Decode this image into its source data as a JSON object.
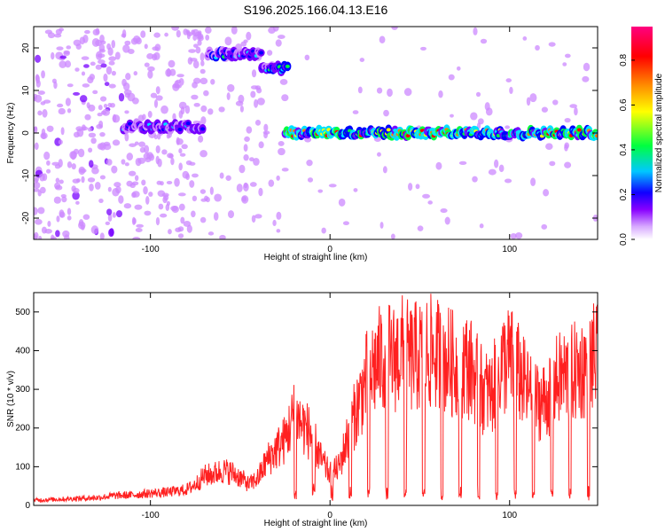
{
  "title": "S196.2025.166.04.13.E16",
  "chart_data": [
    {
      "type": "heatmap",
      "title": "S196.2025.166.04.13.E16",
      "xlabel": "Height of straight line (km)",
      "ylabel": "Frequency (Hz)",
      "xlim": [
        -165,
        149
      ],
      "ylim": [
        -25,
        25
      ],
      "x_ticks": [
        -100,
        0,
        100
      ],
      "y_ticks": [
        -20,
        -10,
        0,
        10,
        20
      ],
      "colorbar": {
        "label": "Normalized spectral amplitude",
        "range": [
          0,
          0.95
        ],
        "ticks": [
          0,
          0.2,
          0.4,
          0.6,
          0.8
        ],
        "tick_labels": [
          "0.0",
          "0.2",
          "0.4",
          "0.6",
          "0.8"
        ],
        "colors": [
          "#ffffff",
          "#cc88ff",
          "#7700ff",
          "#0000ff",
          "#00e0ff",
          "#00ff40",
          "#ffff00",
          "#ff8000",
          "#ff0000",
          "#ff0080"
        ]
      },
      "ridges": [
        {
          "x_start": -115,
          "x_end": -70,
          "freq_hz": 1.5,
          "level": 0.35
        },
        {
          "x_start": -68,
          "x_end": -38,
          "freq_hz": 18.5,
          "level": 0.4
        },
        {
          "x_start": -38,
          "x_end": -23,
          "freq_hz": 15,
          "level": 0.45
        },
        {
          "x_start": -25,
          "x_end": 149,
          "freq_hz": 0,
          "level": 0.75
        }
      ]
    },
    {
      "type": "line",
      "xlabel": "Height of straight line (km)",
      "ylabel": "SNR (10 * v/v)",
      "xlim": [
        -165,
        149
      ],
      "ylim": [
        0,
        550
      ],
      "x_ticks": [
        -100,
        0,
        100
      ],
      "y_ticks": [
        0,
        100,
        200,
        300,
        400,
        500
      ],
      "color": "#ff2020",
      "series": [
        {
          "x": [
            -165,
            -150,
            -140,
            -130,
            -120,
            -110,
            -100,
            -90,
            -80,
            -75,
            -70,
            -65,
            -60,
            -55,
            -50,
            -45,
            -40,
            -35,
            -30,
            -25,
            -20,
            -15,
            -10,
            -5,
            0,
            5,
            10,
            15,
            20,
            25,
            30,
            35,
            40,
            45,
            50,
            55,
            60,
            65,
            70,
            75,
            80,
            85,
            90,
            95,
            100,
            105,
            110,
            115,
            120,
            125,
            130,
            135,
            140,
            145,
            149
          ],
          "y": [
            15,
            18,
            20,
            22,
            28,
            30,
            35,
            38,
            45,
            60,
            85,
            90,
            100,
            95,
            80,
            60,
            80,
            130,
            160,
            190,
            260,
            230,
            200,
            130,
            90,
            110,
            200,
            280,
            360,
            400,
            430,
            420,
            440,
            420,
            430,
            440,
            430,
            420,
            400,
            410,
            380,
            330,
            320,
            400,
            420,
            380,
            330,
            300,
            300,
            350,
            370,
            380,
            390,
            420,
            420
          ]
        }
      ]
    }
  ]
}
